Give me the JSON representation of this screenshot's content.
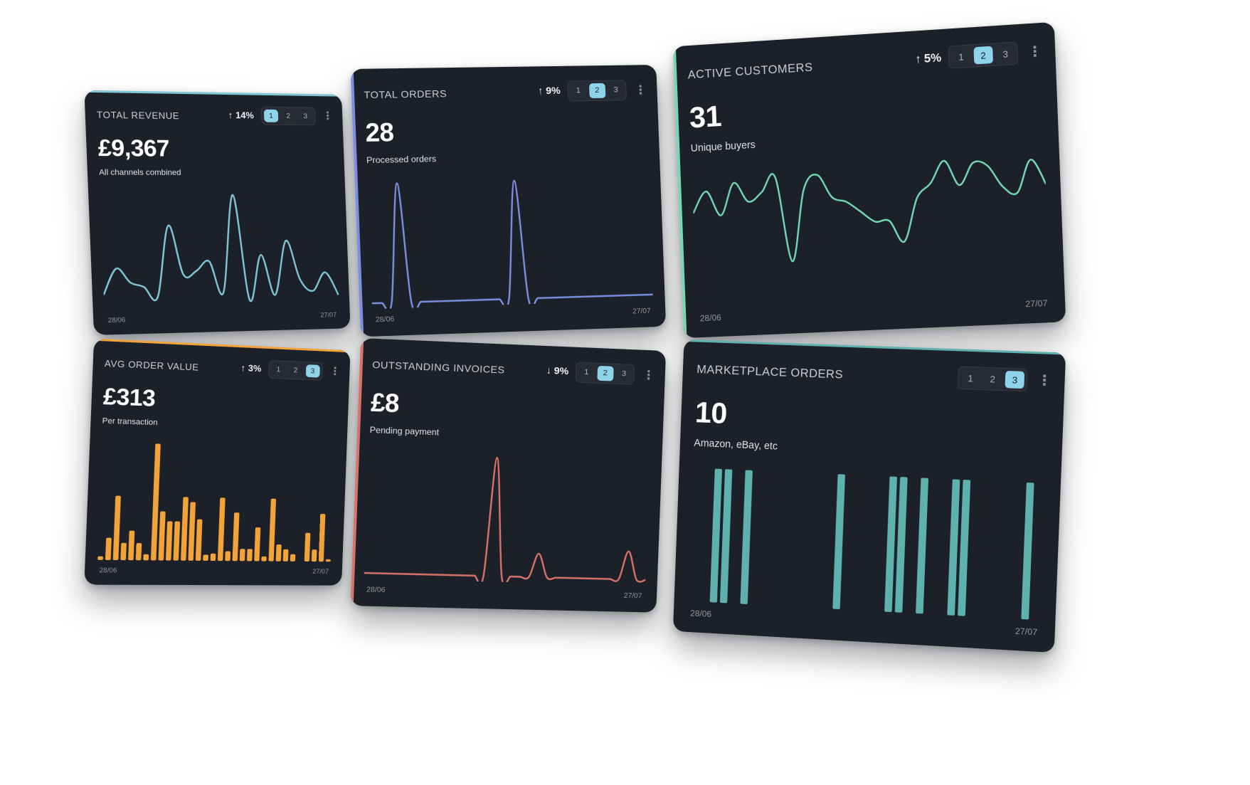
{
  "cards": [
    {
      "title": "TOTAL REVENUE",
      "trend_arrow": "↑",
      "trend": "14%",
      "pages": [
        "1",
        "2",
        "3"
      ],
      "active_page": 1,
      "menu": "⋮",
      "value": "£9,367",
      "subtitle": "All channels combined",
      "start_date": "28/06",
      "end_date": "27/07",
      "color": "#7fc7d4",
      "chart_type": "line",
      "series": [
        8,
        30,
        18,
        14,
        5,
        66,
        24,
        27,
        35,
        8,
        92,
        1,
        40,
        5,
        52,
        18,
        8,
        24,
        4
      ]
    },
    {
      "title": "TOTAL ORDERS",
      "trend_arrow": "↑",
      "trend": "9%",
      "pages": [
        "1",
        "2",
        "3"
      ],
      "active_page": 2,
      "menu": "⋮",
      "value": "28",
      "subtitle": "Processed orders",
      "start_date": "28/06",
      "end_date": "27/07",
      "color": "#7b8ee0",
      "chart_type": "line",
      "series": [
        0,
        0,
        0,
        88,
        0,
        0,
        0,
        0,
        0,
        0,
        0,
        0,
        0,
        0,
        0,
        88,
        0,
        0,
        0,
        0,
        0,
        0,
        0,
        0,
        0,
        0,
        0,
        0,
        0,
        0
      ]
    },
    {
      "title": "ACTIVE CUSTOMERS",
      "trend_arrow": "↑",
      "trend": "5%",
      "pages": [
        "1",
        "2",
        "3"
      ],
      "active_page": 2,
      "menu": "⋮",
      "value": "31",
      "subtitle": "Unique buyers",
      "start_date": "28/06",
      "end_date": "27/07",
      "color": "#74d8b4",
      "chart_type": "line",
      "series": [
        50,
        62,
        48,
        66,
        55,
        60,
        68,
        20,
        60,
        68,
        55,
        52,
        46,
        40,
        40,
        28,
        52,
        60,
        72,
        58,
        70,
        68,
        56,
        52,
        70,
        56
      ]
    },
    {
      "title": "AVG ORDER VALUE",
      "trend_arrow": "↑",
      "trend": "3%",
      "pages": [
        "1",
        "2",
        "3"
      ],
      "active_page": 3,
      "menu": "⋮",
      "value": "£313",
      "subtitle": "Per transaction",
      "start_date": "28/06",
      "end_date": "27/07",
      "color": "#f2a33a",
      "chart_type": "bar",
      "series": [
        3,
        18,
        52,
        14,
        24,
        14,
        5,
        95,
        40,
        32,
        32,
        52,
        48,
        34,
        5,
        6,
        52,
        8,
        40,
        10,
        10,
        28,
        4,
        52,
        14,
        10,
        6,
        0,
        24,
        10,
        40,
        2
      ]
    },
    {
      "title": "OUTSTANDING INVOICES",
      "trend_arrow": "↓",
      "trend": "9%",
      "pages": [
        "1",
        "2",
        "3"
      ],
      "active_page": 2,
      "menu": "⋮",
      "value": "£8",
      "subtitle": "Pending payment",
      "start_date": "28/06",
      "end_date": "27/07",
      "color": "#d8736a",
      "chart_type": "line",
      "series": [
        0,
        0,
        0,
        0,
        0,
        0,
        0,
        0,
        0,
        0,
        0,
        0,
        0,
        0,
        100,
        0,
        0,
        0,
        0,
        20,
        0,
        0,
        0,
        0,
        0,
        0,
        0,
        0,
        0,
        24,
        0,
        0
      ]
    },
    {
      "title": "MARKETPLACE ORDERS",
      "trend_arrow": "",
      "trend": "",
      "pages": [
        "1",
        "2",
        "3"
      ],
      "active_page": 3,
      "menu": "⋮",
      "value": "10",
      "subtitle": "Amazon, eBay, etc",
      "start_date": "28/06",
      "end_date": "27/07",
      "color": "#5fb1ad",
      "chart_type": "bar",
      "series": [
        0,
        0,
        100,
        100,
        0,
        100,
        0,
        0,
        0,
        0,
        0,
        0,
        0,
        0,
        100,
        0,
        0,
        0,
        0,
        100,
        100,
        0,
        100,
        0,
        0,
        100,
        100,
        0,
        0,
        0,
        0,
        0,
        100,
        0
      ]
    }
  ]
}
